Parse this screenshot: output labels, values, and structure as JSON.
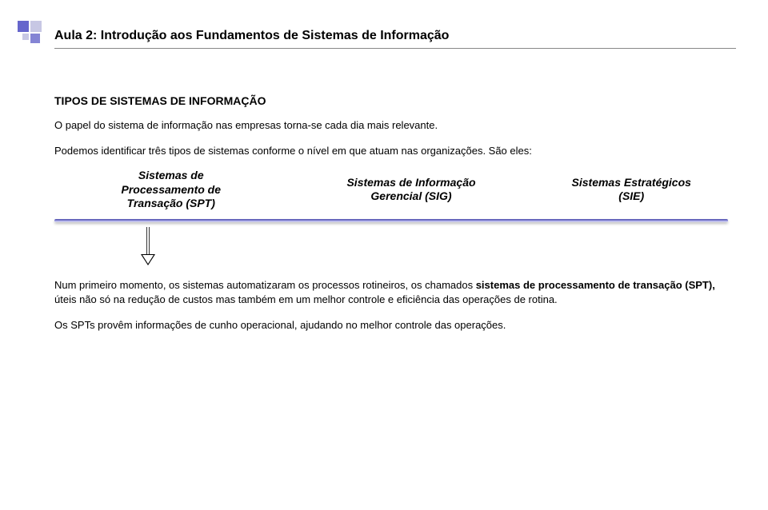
{
  "header": {
    "title": "Aula 2: Introdução aos Fundamentos de Sistemas de Informação"
  },
  "section": {
    "heading": "TIPOS DE SISTEMAS DE INFORMAÇÃO",
    "p1": "O papel do sistema de informação nas empresas torna-se cada dia mais relevante.",
    "p2": "Podemos identificar três tipos de sistemas conforme o nível em que atuam nas organizações. São eles:"
  },
  "types": {
    "col1_line1": "Sistemas de",
    "col1_line2": "Processamento de",
    "col1_line3": "Transação (SPT)",
    "col2_line1": "Sistemas de Informação",
    "col2_line2": "Gerencial (SIG)",
    "col3_line1": "Sistemas Estratégicos",
    "col3_line2": "(SIE)"
  },
  "body": {
    "p1_pre": "Num primeiro momento, os sistemas automatizaram os processos rotineiros, os chamados ",
    "p1_bold": "sistemas de processamento de transação (SPT),",
    "p1_post": " úteis não só na redução de custos mas também em um melhor controle e eficiência das operações de rotina.",
    "p2": "Os SPTs provêm informações de cunho operacional, ajudando no melhor controle das operações."
  },
  "colors": {
    "accent_dark": "#6666cc",
    "accent_mid": "#8484d4",
    "accent_light": "#c7c7e4",
    "rule_gradient_top": "#4a4aa8",
    "text": "#000000",
    "background": "#ffffff"
  }
}
